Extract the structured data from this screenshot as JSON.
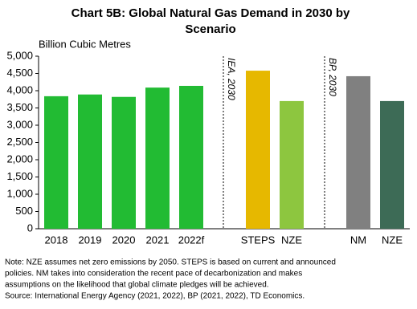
{
  "chart_data": {
    "type": "bar",
    "title": [
      "Chart 5B: Global Natural Gas Demand in 2030 by",
      "Scenario"
    ],
    "y_label": "Billion Cubic Metres",
    "categories": [
      "2018",
      "2019",
      "2020",
      "2021",
      "2022f",
      "STEPS",
      "NZE",
      "NM",
      "NZE"
    ],
    "values": [
      3840,
      3890,
      3820,
      4090,
      4140,
      4580,
      3700,
      4420,
      3700
    ],
    "colors": [
      "#22bb33",
      "#22bb33",
      "#22bb33",
      "#22bb33",
      "#22bb33",
      "#e6b800",
      "#8dc63f",
      "#808080",
      "#3d6b56"
    ],
    "ylim": [
      0,
      5000
    ],
    "yticks": [
      0,
      500,
      {
        "value": 1000,
        "label": "1,000"
      },
      {
        "value": 1500,
        "label": "1,500"
      },
      {
        "value": 2000,
        "label": "2,000"
      },
      {
        "value": 2500,
        "label": "2,500"
      },
      {
        "value": 3000,
        "label": "3,000"
      },
      {
        "value": 3500,
        "label": "3,500"
      },
      {
        "value": 4000,
        "label": "4,000"
      },
      {
        "value": 4500,
        "label": "4,500"
      },
      {
        "value": 5000,
        "label": "5,000"
      }
    ],
    "annotations": [
      "IEA, 2030",
      "BP, 2030"
    ],
    "notes": [
      "Note: NZE assumes net zero emissions by 2050. STEPS is based on current and announced",
      "policies. NM takes into consideration the recent pace of decarbonization and makes",
      "assumptions on the likelihood that global climate pledges will be achieved.",
      "Source: International Energy Agency (2021, 2022), BP (2021, 2022), TD Economics."
    ]
  }
}
